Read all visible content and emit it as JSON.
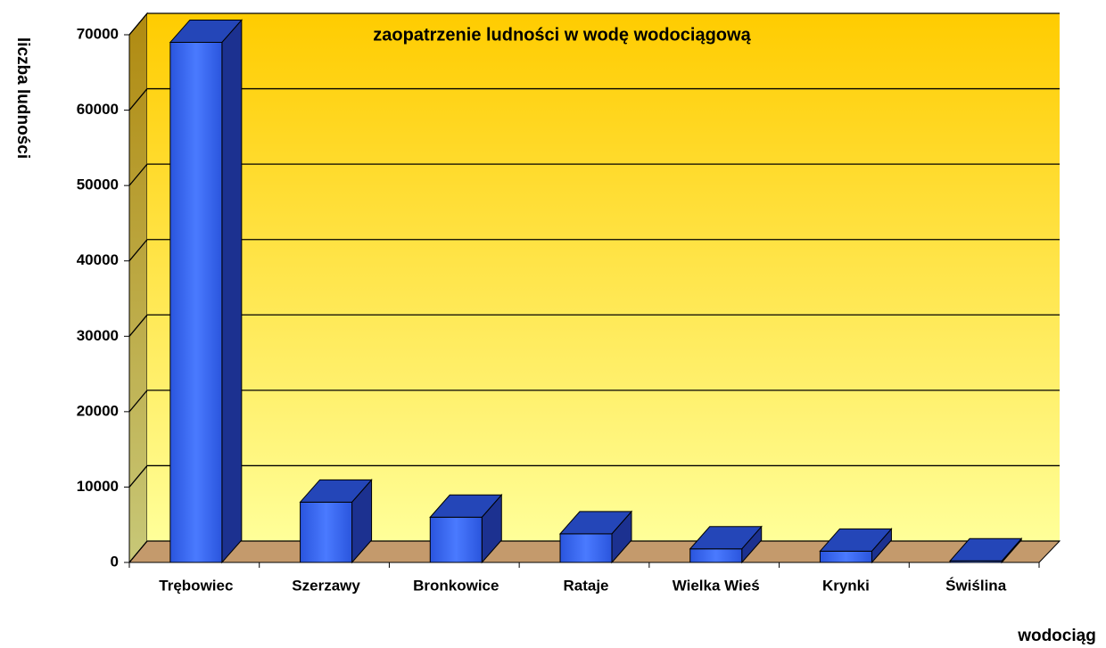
{
  "chart_data": {
    "type": "bar",
    "title": "zaopatrzenie ludności w wodę wodociągową",
    "y_label": "liczba ludności",
    "x_label": "wodociąg",
    "categories": [
      "Trębowiec",
      "Szerzawy",
      "Bronkowice",
      "Rataje",
      "Wielka Wieś",
      "Krynki",
      "Świślina"
    ],
    "values": [
      69000,
      8000,
      6000,
      3800,
      1800,
      1500,
      200
    ],
    "color": "#3366ff",
    "ylim": [
      0,
      70000
    ],
    "yticks": [
      0,
      10000,
      20000,
      30000,
      40000,
      50000,
      60000,
      70000
    ],
    "grid": true
  }
}
